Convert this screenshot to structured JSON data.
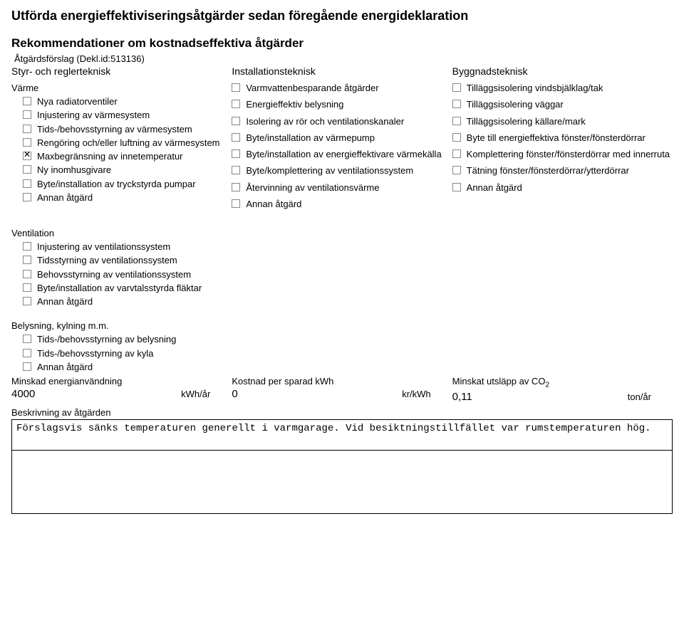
{
  "title_main": "Utförda energieffektiviseringsåtgärder sedan föregående energideklaration",
  "title_rec": "Rekommendationer om kostnadseffektiva åtgärder",
  "proposal_label": "Åtgärdsförslag (Dekl.id:513136)",
  "cols": {
    "c1": "Styr- och reglerteknisk",
    "c2": "Installationsteknisk",
    "c3": "Byggnadsteknisk"
  },
  "varme_title": "Värme",
  "varme": [
    {
      "label": "Nya radiatorventiler",
      "checked": false
    },
    {
      "label": "Injustering av värmesystem",
      "checked": false
    },
    {
      "label": "Tids-/behovsstyrning av värmesystem",
      "checked": false
    },
    {
      "label": "Rengöring och/eller luftning av värmesystem",
      "checked": false
    },
    {
      "label": "Maxbegränsning av innetemperatur",
      "checked": true
    },
    {
      "label": "Ny inomhusgivare",
      "checked": false
    },
    {
      "label": "Byte/installation av tryckstyrda pumpar",
      "checked": false
    },
    {
      "label": "Annan åtgärd",
      "checked": false
    }
  ],
  "install": [
    {
      "label": "Varmvattenbesparande åtgärder",
      "checked": false
    },
    {
      "label": "Energieffektiv belysning",
      "checked": false
    },
    {
      "label": "Isolering av rör och ventilationskanaler",
      "checked": false
    },
    {
      "label": "Byte/installation av värmepump",
      "checked": false
    },
    {
      "label": "Byte/installation av energieffektivare värmekälla",
      "checked": false
    },
    {
      "label": "Byte/komplettering av ventilationssystem",
      "checked": false
    },
    {
      "label": "Återvinning av ventilationsvärme",
      "checked": false
    },
    {
      "label": "Annan åtgärd",
      "checked": false
    }
  ],
  "bygg": [
    {
      "label": "Tilläggsisolering vindsbjälklag/tak",
      "checked": false
    },
    {
      "label": "Tilläggsisolering väggar",
      "checked": false
    },
    {
      "label": "Tilläggsisolering källare/mark",
      "checked": false
    },
    {
      "label": "Byte till energieffektiva fönster/fönsterdörrar",
      "checked": false
    },
    {
      "label": "Komplettering fönster/fönsterdörrar med innerruta",
      "checked": false
    },
    {
      "label": "Tätning fönster/fönsterdörrar/ytterdörrar",
      "checked": false
    },
    {
      "label": "Annan åtgärd",
      "checked": false
    }
  ],
  "vent_title": "Ventilation",
  "vent": [
    {
      "label": "Injustering av ventilationssystem",
      "checked": false
    },
    {
      "label": "Tidsstyrning av ventilationssystem",
      "checked": false
    },
    {
      "label": "Behovsstyrning av ventilationssystem",
      "checked": false
    },
    {
      "label": "Byte/installation av varvtalsstyrda fläktar",
      "checked": false
    },
    {
      "label": "Annan åtgärd",
      "checked": false
    }
  ],
  "bel_title": "Belysning, kylning m.m.",
  "bel": [
    {
      "label": "Tids-/behovsstyrning av belysning",
      "checked": false
    },
    {
      "label": "Tids-/behovsstyrning av kyla",
      "checked": false
    },
    {
      "label": "Annan åtgärd",
      "checked": false
    }
  ],
  "metrics": {
    "m1_label": "Minskad energianvändning",
    "m1_val": "4000",
    "m1_unit": "kWh/år",
    "m2_label": "Kostnad per sparad kWh",
    "m2_val": "0",
    "m2_unit": "kr/kWh",
    "m3_label_pre": "Minskat utsläpp av CO",
    "m3_label_sub": "2",
    "m3_val": "0,11",
    "m3_unit": "ton/år"
  },
  "desc_label": "Beskrivning av åtgärden",
  "desc_text": "Förslagsvis sänks temperaturen generellt i varmgarage. Vid besiktningstillfället var rumstemperaturen hög."
}
